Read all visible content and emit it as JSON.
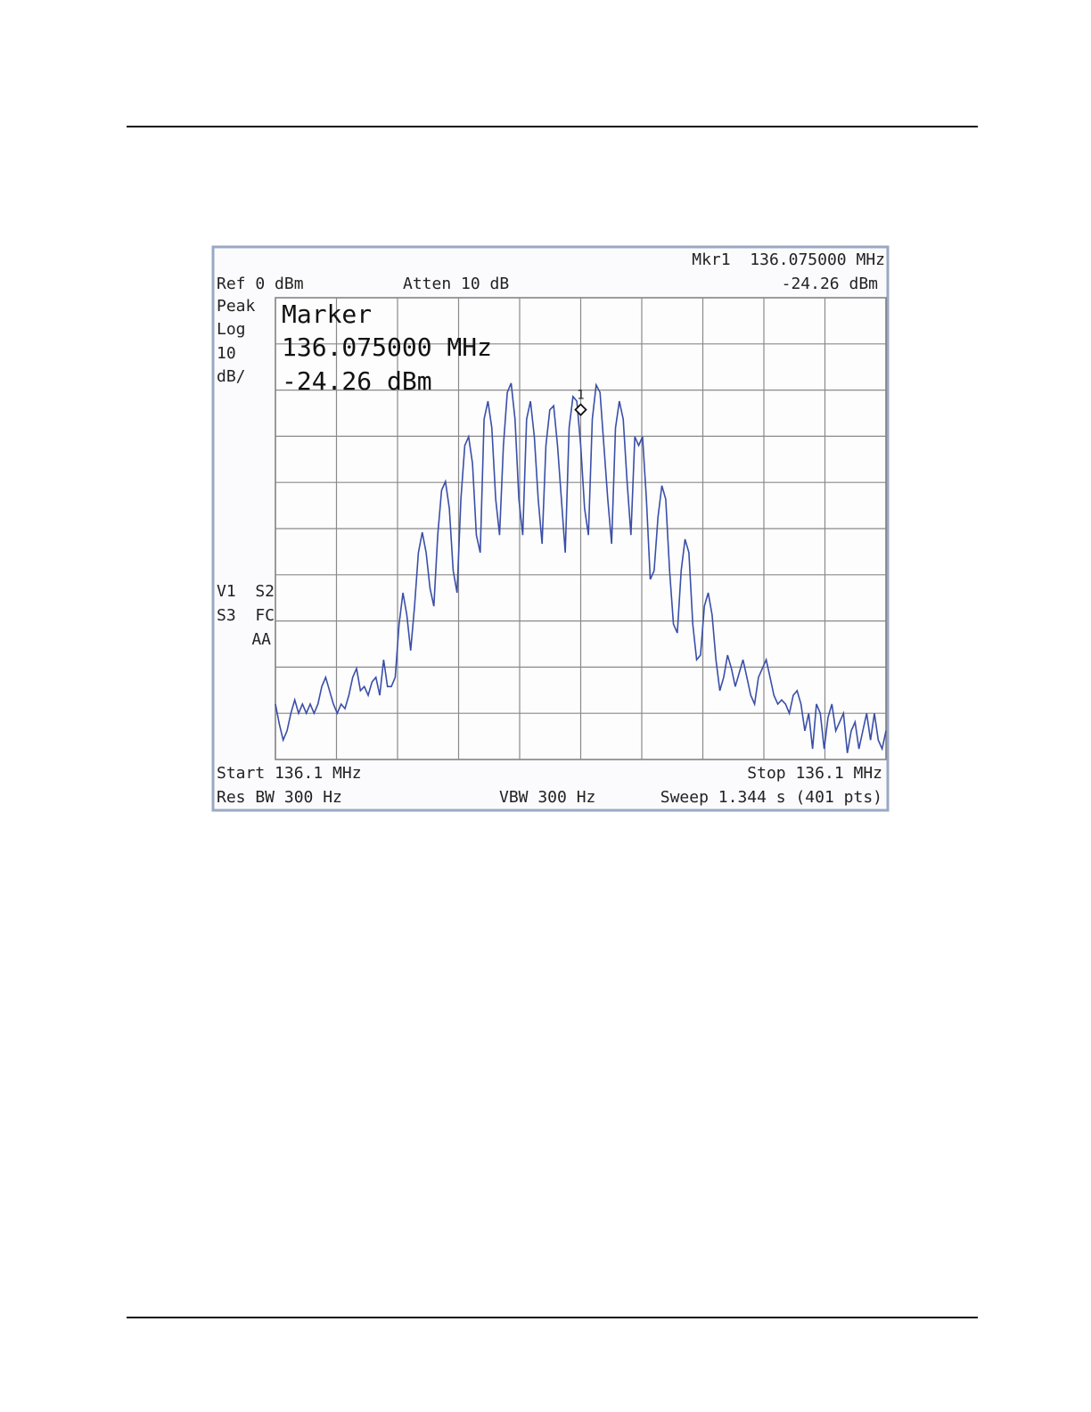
{
  "screen": {
    "mkr_header": "Mkr1  136.075000 MHz",
    "ref": "Ref 0 dBm",
    "atten": "Atten 10 dB",
    "mkr_level": "-24.26 dBm",
    "side_labels": [
      "Peak",
      "Log",
      "10",
      "dB/"
    ],
    "status_labels": [
      "V1  S2",
      "S3  FC",
      "AA"
    ],
    "marker_box": [
      "Marker",
      "136.075000 MHz",
      "-24.26 dBm"
    ],
    "start": "Start 136.1 MHz",
    "stop": "Stop 136.1 MHz",
    "res_bw": "Res BW 300 Hz",
    "vbw": "VBW 300 Hz",
    "sweep": "Sweep 1.344 s (401 pts)"
  },
  "chart_data": {
    "type": "line",
    "ylim": [
      -100,
      0
    ],
    "yticks": [
      -100,
      -90,
      -80,
      -70,
      -60,
      -50,
      -40,
      -30,
      -20,
      -10,
      0
    ],
    "grid": true,
    "marker": {
      "label": "1",
      "value": -24.26
    },
    "series": [
      {
        "color": "#3a4fa8",
        "values": [
          -88,
          -92.3,
          -95.8,
          -93.8,
          -90,
          -87.1,
          -90,
          -88,
          -90,
          -88,
          -90,
          -88,
          -84.2,
          -82.2,
          -85.1,
          -88,
          -90,
          -88,
          -89,
          -86.1,
          -82.2,
          -80.3,
          -85.1,
          -84.2,
          -86.1,
          -83.2,
          -82.2,
          -86.1,
          -78.4,
          -84.2,
          -84.2,
          -82.2,
          -70.7,
          -63.9,
          -68.7,
          -76.4,
          -66.8,
          -55.2,
          -50.8,
          -55.2,
          -62.9,
          -66.8,
          -51.4,
          -41.7,
          -39.8,
          -45.6,
          -59.1,
          -63.9,
          -43.6,
          -32,
          -30.1,
          -35.9,
          -51.4,
          -55.2,
          -26.3,
          -22.4,
          -28.2,
          -43.6,
          -51.4,
          -32,
          -20.5,
          -18.5,
          -26.3,
          -43.6,
          -51.4,
          -26.3,
          -22.4,
          -30.1,
          -43.6,
          -53.3,
          -32,
          -24.3,
          -23.4,
          -32,
          -43.6,
          -55.2,
          -28.2,
          -21.4,
          -22.4,
          -32,
          -45.6,
          -51.4,
          -26.3,
          -18.9,
          -20.5,
          -32,
          -43.6,
          -53.3,
          -28.2,
          -22.4,
          -26.3,
          -39.8,
          -51.4,
          -30.1,
          -32,
          -30.1,
          -43.6,
          -61,
          -59.1,
          -47.5,
          -40.7,
          -43.6,
          -59.1,
          -70.7,
          -72.6,
          -59.1,
          -52.3,
          -55.2,
          -70.7,
          -78.4,
          -77.4,
          -66.8,
          -63.9,
          -68.7,
          -78.4,
          -85.1,
          -82.2,
          -77.4,
          -80.3,
          -84.2,
          -81.3,
          -78.4,
          -82.2,
          -86.1,
          -88,
          -82.2,
          -80.3,
          -78.4,
          -82.2,
          -86.1,
          -88,
          -87.1,
          -88,
          -90,
          -86.1,
          -85.1,
          -88,
          -93.8,
          -90,
          -97.7,
          -88,
          -90,
          -97.7,
          -90.9,
          -88,
          -93.8,
          -91.9,
          -90,
          -98.6,
          -93.8,
          -91.9,
          -97.7,
          -93.8,
          -90,
          -95.8,
          -90,
          -95.8,
          -97.7,
          -93.8
        ]
      }
    ]
  }
}
